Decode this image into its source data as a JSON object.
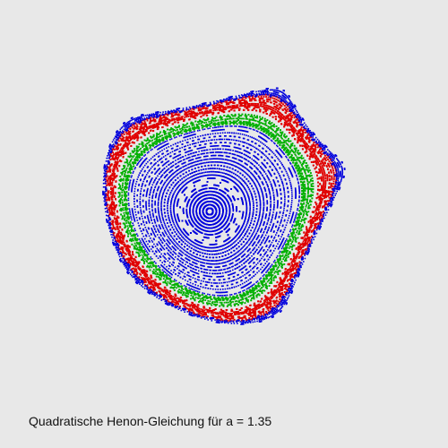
{
  "caption": "Quadratische Henon-Gleichung für a = 1.35",
  "colors": {
    "background": "#e8e8e8",
    "outer_chaos": "#e00000",
    "inner_orbits": "#0000dd",
    "mid_orbits": "#00b000"
  },
  "chart_data": {
    "type": "scatter",
    "title": "Quadratische Henon-Gleichung für a = 1.35",
    "map": "quadratic area-preserving Henon map",
    "parameter_a": 1.35,
    "xlabel": "",
    "ylabel": "",
    "grid": false,
    "legend": "none",
    "series_colors": [
      "red",
      "green",
      "blue"
    ]
  }
}
